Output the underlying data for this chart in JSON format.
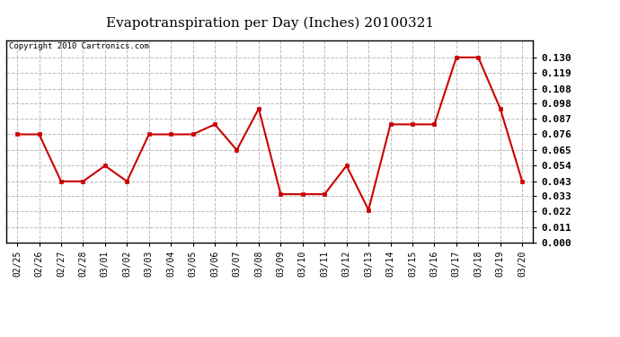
{
  "title": "Evapotranspiration per Day (Inches) 20100321",
  "copyright": "Copyright 2010 Cartronics.com",
  "x_labels": [
    "02/25",
    "02/26",
    "02/27",
    "02/28",
    "03/01",
    "03/02",
    "03/03",
    "03/04",
    "03/05",
    "03/06",
    "03/07",
    "03/08",
    "03/09",
    "03/10",
    "03/11",
    "03/12",
    "03/13",
    "03/14",
    "03/15",
    "03/16",
    "03/17",
    "03/18",
    "03/19",
    "03/20"
  ],
  "y_values": [
    0.076,
    0.076,
    0.043,
    0.043,
    0.054,
    0.043,
    0.076,
    0.076,
    0.076,
    0.083,
    0.065,
    0.094,
    0.034,
    0.034,
    0.034,
    0.054,
    0.023,
    0.083,
    0.083,
    0.083,
    0.13,
    0.13,
    0.094,
    0.043
  ],
  "ylim": [
    0.0,
    0.1419
  ],
  "yticks": [
    0.0,
    0.011,
    0.022,
    0.033,
    0.043,
    0.054,
    0.065,
    0.076,
    0.087,
    0.098,
    0.108,
    0.119,
    0.13
  ],
  "line_color": "#cc0000",
  "marker_color": "#cc0000",
  "bg_color": "#ffffff",
  "grid_color": "#bbbbbb",
  "title_fontsize": 11,
  "copyright_fontsize": 6.5,
  "tick_fontsize": 7,
  "ytick_fontsize": 8
}
